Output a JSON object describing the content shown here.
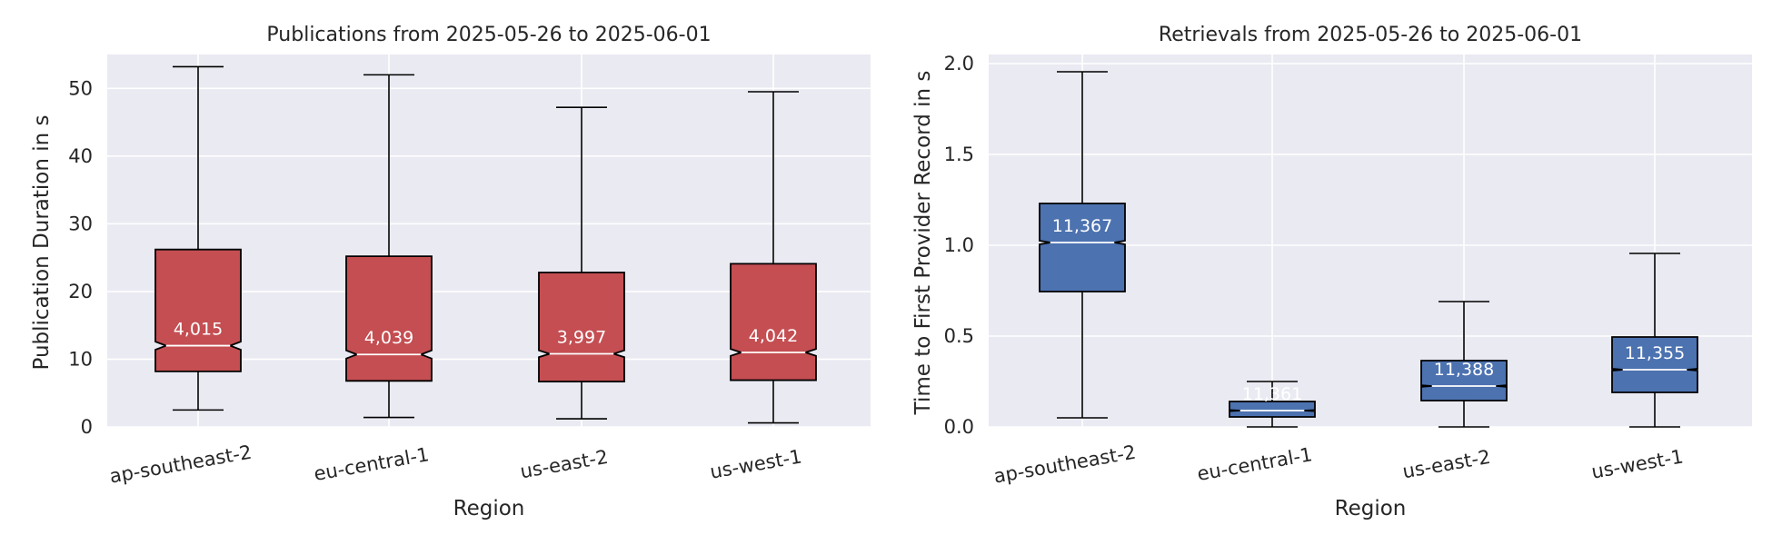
{
  "chart_data": [
    {
      "type": "boxplot",
      "title": "Publications from 2025-05-26 to 2025-06-01",
      "xlabel": "Region",
      "ylabel": "Publication Duration in s",
      "ylim": [
        0,
        55
      ],
      "yticks": [
        0,
        10,
        20,
        30,
        40,
        50
      ],
      "ytick_labels": [
        "0",
        "10",
        "20",
        "30",
        "40",
        "50"
      ],
      "grid": true,
      "notched": true,
      "box_color": "#c44e52",
      "categories": [
        "ap-southeast-2",
        "eu-central-1",
        "us-east-2",
        "us-west-1"
      ],
      "boxes": [
        {
          "whisker_low": 2.5,
          "q1": 8.2,
          "median": 12.0,
          "q3": 26.2,
          "whisker_high": 53.2,
          "notch": 0.6,
          "count_label": "4,015"
        },
        {
          "whisker_low": 1.4,
          "q1": 6.8,
          "median": 10.7,
          "q3": 25.2,
          "whisker_high": 52.0,
          "notch": 0.6,
          "count_label": "4,039"
        },
        {
          "whisker_low": 1.2,
          "q1": 6.7,
          "median": 10.8,
          "q3": 22.8,
          "whisker_high": 47.2,
          "notch": 0.5,
          "count_label": "3,997"
        },
        {
          "whisker_low": 0.6,
          "q1": 6.9,
          "median": 11.0,
          "q3": 24.1,
          "whisker_high": 49.5,
          "notch": 0.5,
          "count_label": "4,042"
        }
      ]
    },
    {
      "type": "boxplot",
      "title": "Retrievals from 2025-05-26 to 2025-06-01",
      "xlabel": "Region",
      "ylabel": "Time to First Provider Record in s",
      "ylim": [
        0,
        2.05
      ],
      "yticks": [
        0,
        0.5,
        1.0,
        1.5,
        2.0
      ],
      "ytick_labels": [
        "0.0",
        "0.5",
        "1.0",
        "1.5",
        "2.0"
      ],
      "grid": true,
      "notched": true,
      "box_color": "#4c72b0",
      "categories": [
        "ap-southeast-2",
        "eu-central-1",
        "us-east-2",
        "us-west-1"
      ],
      "boxes": [
        {
          "whisker_low": 0.05,
          "q1": 0.745,
          "median": 1.015,
          "q3": 1.23,
          "whisker_high": 1.955,
          "notch": 0.01,
          "count_label": "11,367"
        },
        {
          "whisker_low": 0.0,
          "q1": 0.055,
          "median": 0.09,
          "q3": 0.14,
          "whisker_high": 0.25,
          "notch": 0.003,
          "count_label": "11,361"
        },
        {
          "whisker_low": 0.0,
          "q1": 0.145,
          "median": 0.225,
          "q3": 0.365,
          "whisker_high": 0.69,
          "notch": 0.004,
          "count_label": "11,388"
        },
        {
          "whisker_low": 0.0,
          "q1": 0.19,
          "median": 0.315,
          "q3": 0.495,
          "whisker_high": 0.955,
          "notch": 0.005,
          "count_label": "11,355"
        }
      ]
    }
  ]
}
